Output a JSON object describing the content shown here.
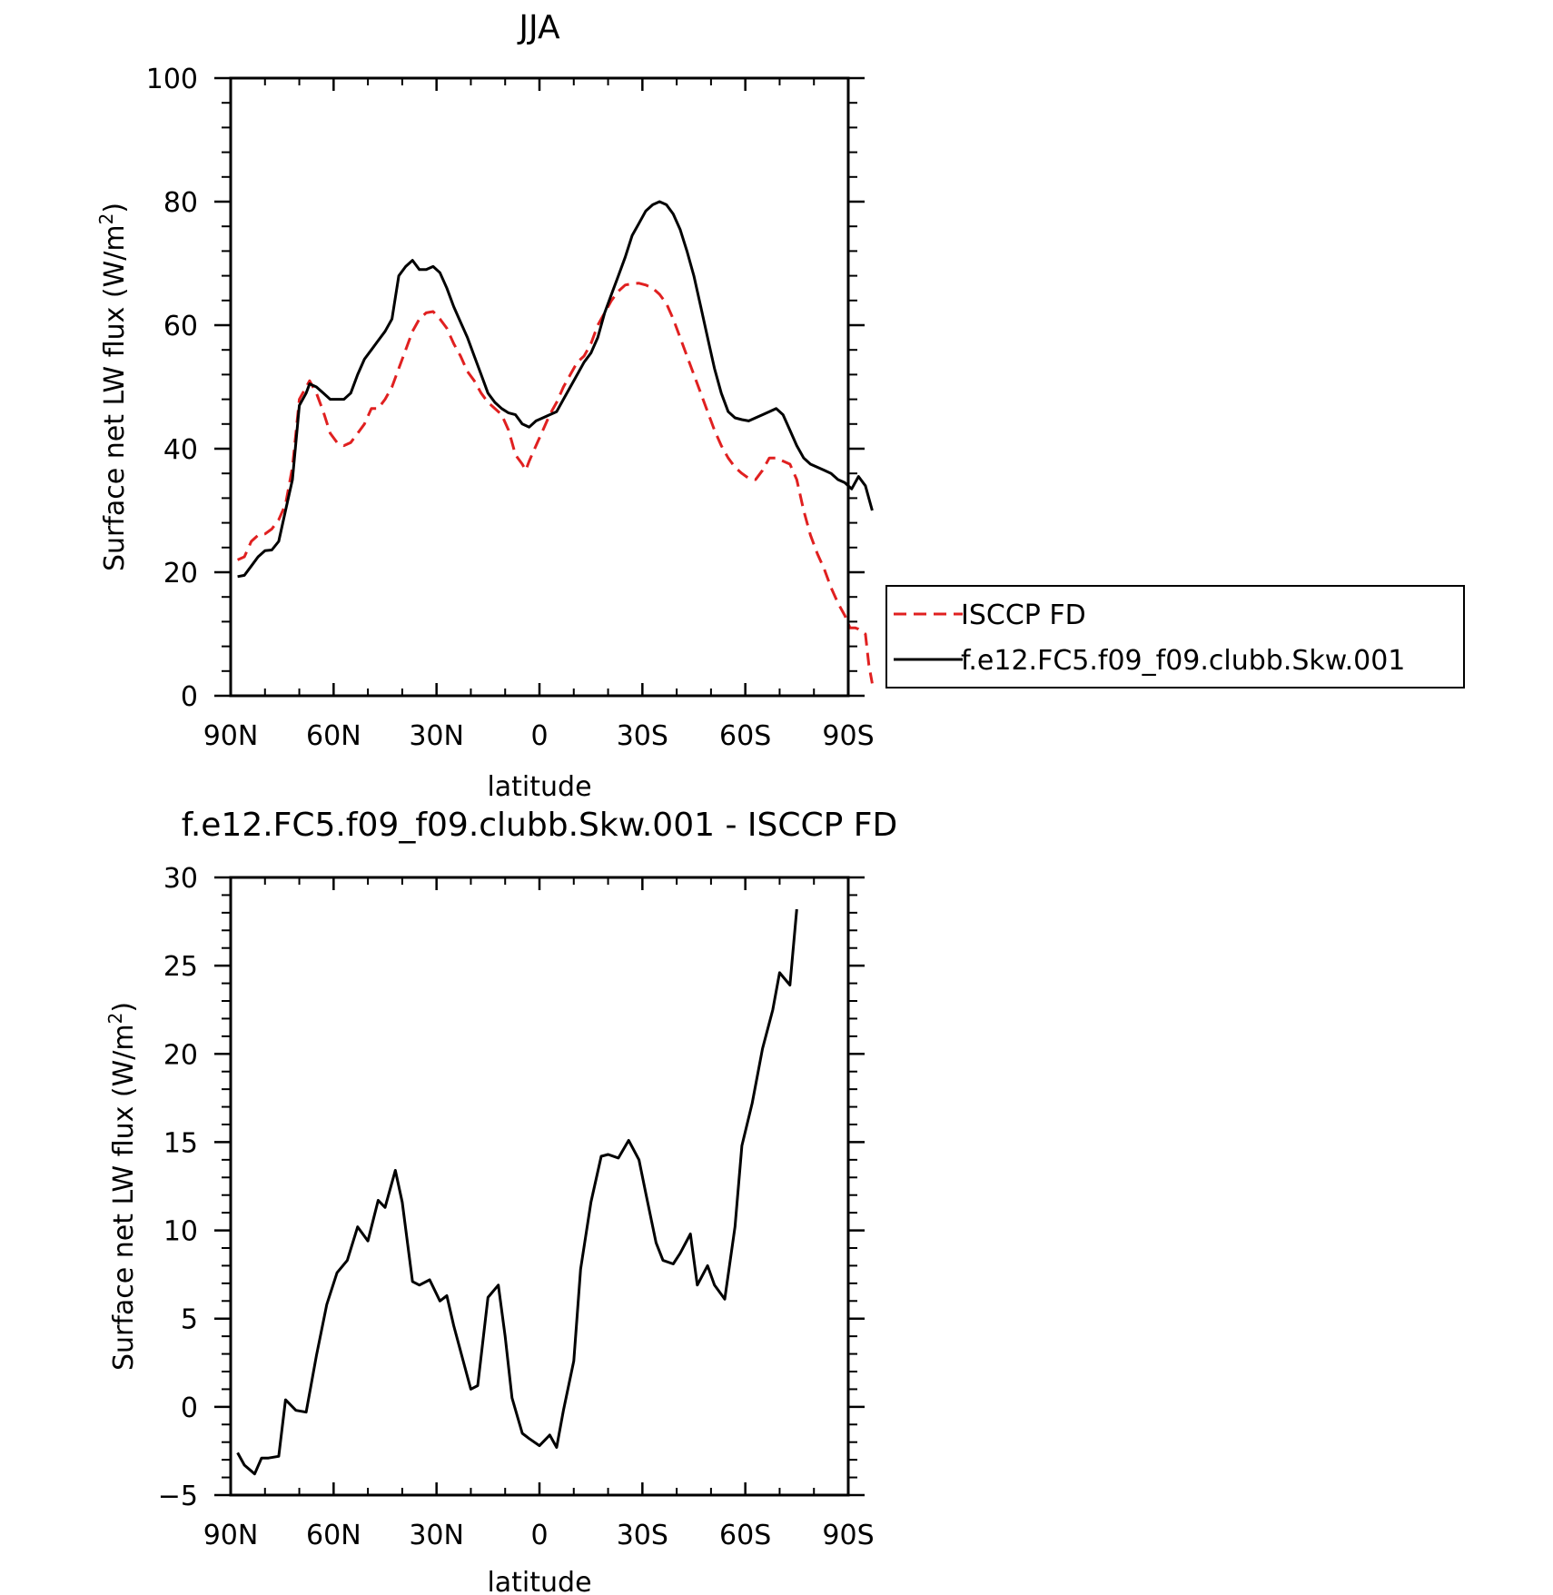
{
  "charts": [
    {
      "type": "line",
      "title": "JJA",
      "xlabel": "latitude",
      "ylabel": "Surface net LW flux (W/m",
      "ylabel_sup": "2",
      "ylabel_close": ")",
      "xlim": [
        90,
        -90
      ],
      "ylim": [
        0,
        100
      ],
      "x_ticks": [
        90,
        60,
        30,
        0,
        -30,
        -60,
        -90
      ],
      "x_tick_labels": [
        "90N",
        "60N",
        "30N",
        "0",
        "30S",
        "60S",
        "90S"
      ],
      "y_ticks": [
        0,
        20,
        40,
        60,
        80,
        100
      ],
      "y_tick_labels": [
        "0",
        "20",
        "40",
        "60",
        "80",
        "100"
      ],
      "legend": {
        "placement": "right",
        "entries": [
          "ISCCP FD",
          "f.e12.FC5.f09_f09.clubb.Skw.001"
        ]
      },
      "series": [
        {
          "name": "ISCCP FD",
          "color": "#e02020",
          "dashed": true,
          "points": [
            [
              88,
              22
            ],
            [
              86,
              22.5
            ],
            [
              84,
              25
            ],
            [
              82,
              26
            ],
            [
              80,
              26.2
            ],
            [
              78,
              27
            ],
            [
              76,
              28.5
            ],
            [
              74,
              31
            ],
            [
              72,
              37
            ],
            [
              70,
              48
            ],
            [
              67,
              51
            ],
            [
              65,
              49
            ],
            [
              63,
              46
            ],
            [
              61,
              42.5
            ],
            [
              59,
              41
            ],
            [
              57,
              40.5
            ],
            [
              55,
              41
            ],
            [
              53,
              42.5
            ],
            [
              51,
              44
            ],
            [
              49,
              46.5
            ],
            [
              47,
              46.5
            ],
            [
              45,
              48
            ],
            [
              43,
              50
            ],
            [
              41,
              53
            ],
            [
              39,
              56
            ],
            [
              37,
              59
            ],
            [
              35,
              61
            ],
            [
              33,
              62
            ],
            [
              31,
              62.2
            ],
            [
              29,
              61
            ],
            [
              27,
              59.5
            ],
            [
              25,
              57
            ],
            [
              23,
              55
            ],
            [
              21,
              52.5
            ],
            [
              19,
              51
            ],
            [
              17,
              49
            ],
            [
              15,
              47.5
            ],
            [
              13,
              46.5
            ],
            [
              11,
              45.5
            ],
            [
              9,
              43
            ],
            [
              7,
              39
            ],
            [
              5,
              37.5
            ],
            [
              4,
              36.5
            ],
            [
              3,
              38
            ],
            [
              1,
              40.5
            ],
            [
              -1,
              43
            ],
            [
              -3,
              45.5
            ],
            [
              -5,
              47.5
            ],
            [
              -7,
              50
            ],
            [
              -9,
              52
            ],
            [
              -11,
              54
            ],
            [
              -13,
              55
            ],
            [
              -15,
              57
            ],
            [
              -17,
              60
            ],
            [
              -19,
              62
            ],
            [
              -21,
              64
            ],
            [
              -23,
              65.5
            ],
            [
              -25,
              66.5
            ],
            [
              -27,
              66.7
            ],
            [
              -29,
              66.8
            ],
            [
              -31,
              66.5
            ],
            [
              -33,
              66
            ],
            [
              -35,
              65
            ],
            [
              -37,
              63.5
            ],
            [
              -39,
              61
            ],
            [
              -41,
              58
            ],
            [
              -43,
              55
            ],
            [
              -45,
              52
            ],
            [
              -47,
              49
            ],
            [
              -49,
              46
            ],
            [
              -51,
              43
            ],
            [
              -53,
              40.5
            ],
            [
              -55,
              38.5
            ],
            [
              -57,
              37
            ],
            [
              -59,
              36
            ],
            [
              -61,
              35.2
            ],
            [
              -63,
              35
            ],
            [
              -65,
              36.5
            ],
            [
              -67,
              38.5
            ],
            [
              -69,
              38.5
            ],
            [
              -71,
              38
            ],
            [
              -73,
              37.5
            ],
            [
              -75,
              35
            ],
            [
              -77,
              30
            ],
            [
              -79,
              26
            ],
            [
              -81,
              23
            ],
            [
              -83,
              20.5
            ],
            [
              -85,
              17.5
            ],
            [
              -87,
              15
            ],
            [
              -89,
              13
            ],
            [
              -90.5,
              11
            ],
            [
              -92,
              11
            ],
            [
              -93,
              10.8
            ],
            [
              -95,
              10
            ],
            [
              -96,
              5
            ],
            [
              -97,
              2
            ]
          ]
        },
        {
          "name": "f.e12.FC5.f09_f09.clubb.Skw.001",
          "color": "#000000",
          "dashed": false,
          "points": [
            [
              88,
              19.3
            ],
            [
              86,
              19.5
            ],
            [
              84,
              21
            ],
            [
              82,
              22.5
            ],
            [
              80,
              23.5
            ],
            [
              78,
              23.6
            ],
            [
              76,
              25
            ],
            [
              74,
              30
            ],
            [
              72,
              35
            ],
            [
              70,
              47
            ],
            [
              68,
              49
            ],
            [
              67,
              50.5
            ],
            [
              65,
              50
            ],
            [
              63,
              49
            ],
            [
              61,
              48
            ],
            [
              59,
              48
            ],
            [
              57,
              48
            ],
            [
              55,
              49
            ],
            [
              53,
              52
            ],
            [
              51,
              54.5
            ],
            [
              49,
              56
            ],
            [
              47,
              57.5
            ],
            [
              45,
              59
            ],
            [
              43,
              61
            ],
            [
              41,
              68
            ],
            [
              39,
              69.5
            ],
            [
              37,
              70.5
            ],
            [
              35,
              69
            ],
            [
              33,
              69
            ],
            [
              31,
              69.5
            ],
            [
              29,
              68.5
            ],
            [
              27,
              66
            ],
            [
              25,
              63
            ],
            [
              23,
              60.5
            ],
            [
              21,
              58
            ],
            [
              19,
              55
            ],
            [
              17,
              52
            ],
            [
              15,
              49
            ],
            [
              13,
              47.5
            ],
            [
              11,
              46.5
            ],
            [
              9,
              45.8
            ],
            [
              7,
              45.5
            ],
            [
              5,
              44
            ],
            [
              3,
              43.5
            ],
            [
              1,
              44.5
            ],
            [
              -1,
              45
            ],
            [
              -3,
              45.5
            ],
            [
              -5,
              46
            ],
            [
              -7,
              48
            ],
            [
              -9,
              50
            ],
            [
              -11,
              52
            ],
            [
              -13,
              54
            ],
            [
              -15,
              55.5
            ],
            [
              -17,
              58
            ],
            [
              -19,
              62
            ],
            [
              -21,
              65
            ],
            [
              -23,
              68
            ],
            [
              -25,
              71
            ],
            [
              -27,
              74.5
            ],
            [
              -29,
              76.5
            ],
            [
              -31,
              78.5
            ],
            [
              -33,
              79.5
            ],
            [
              -35,
              80
            ],
            [
              -37,
              79.5
            ],
            [
              -39,
              78
            ],
            [
              -41,
              75.5
            ],
            [
              -43,
              72
            ],
            [
              -45,
              68
            ],
            [
              -47,
              63
            ],
            [
              -49,
              58
            ],
            [
              -51,
              53
            ],
            [
              -53,
              49
            ],
            [
              -55,
              46
            ],
            [
              -57,
              45
            ],
            [
              -59,
              44.7
            ],
            [
              -61,
              44.5
            ],
            [
              -63,
              45
            ],
            [
              -65,
              45.5
            ],
            [
              -67,
              46
            ],
            [
              -69,
              46.5
            ],
            [
              -71,
              45.5
            ],
            [
              -73,
              43
            ],
            [
              -75,
              40.5
            ],
            [
              -77,
              38.5
            ],
            [
              -79,
              37.5
            ],
            [
              -81,
              37
            ],
            [
              -83,
              36.5
            ],
            [
              -85,
              36
            ],
            [
              -87,
              35
            ],
            [
              -89,
              34.5
            ],
            [
              -91,
              33.5
            ],
            [
              -93,
              35.5
            ],
            [
              -95,
              34
            ],
            [
              -97,
              30
            ]
          ]
        }
      ]
    },
    {
      "type": "line",
      "title": "f.e12.FC5.f09_f09.clubb.Skw.001 - ISCCP FD",
      "xlabel": "latitude",
      "ylabel": "Surface net LW flux (W/m",
      "ylabel_sup": "2",
      "ylabel_close": ")",
      "xlim": [
        90,
        -90
      ],
      "ylim": [
        -5,
        30
      ],
      "x_ticks": [
        90,
        60,
        30,
        0,
        -30,
        -60,
        -90
      ],
      "x_tick_labels": [
        "90N",
        "60N",
        "30N",
        "0",
        "30S",
        "60S",
        "90S"
      ],
      "y_ticks": [
        -5,
        0,
        5,
        10,
        15,
        20,
        25,
        30
      ],
      "y_tick_labels": [
        "−5",
        "0",
        "5",
        "10",
        "15",
        "20",
        "25",
        "30"
      ],
      "series": [
        {
          "color": "#000000",
          "dashed": false,
          "points": [
            [
              88,
              -2.6
            ],
            [
              86,
              -3.3
            ],
            [
              83,
              -3.8
            ],
            [
              81,
              -2.9
            ],
            [
              79,
              -2.9
            ],
            [
              76,
              -2.8
            ],
            [
              74,
              0.4
            ],
            [
              71,
              -0.2
            ],
            [
              68,
              -0.3
            ],
            [
              65,
              2.9
            ],
            [
              62,
              5.8
            ],
            [
              59,
              7.6
            ],
            [
              56,
              8.3
            ],
            [
              53,
              10.2
            ],
            [
              50,
              9.4
            ],
            [
              47,
              11.7
            ],
            [
              45,
              11.3
            ],
            [
              42,
              13.4
            ],
            [
              40,
              11.6
            ],
            [
              37,
              7.1
            ],
            [
              35,
              6.9
            ],
            [
              32,
              7.2
            ],
            [
              29,
              6.0
            ],
            [
              27,
              6.3
            ],
            [
              25,
              4.6
            ],
            [
              20,
              1.0
            ],
            [
              18,
              1.2
            ],
            [
              15,
              6.2
            ],
            [
              12,
              6.9
            ],
            [
              10,
              4.0
            ],
            [
              8,
              0.5
            ],
            [
              5,
              -1.5
            ],
            [
              3,
              -1.8
            ],
            [
              0,
              -2.2
            ],
            [
              -3,
              -1.6
            ],
            [
              -5,
              -2.3
            ],
            [
              -7,
              -0.2
            ],
            [
              -10,
              2.6
            ],
            [
              -12,
              7.8
            ],
            [
              -15,
              11.6
            ],
            [
              -18,
              14.2
            ],
            [
              -20,
              14.3
            ],
            [
              -23,
              14.1
            ],
            [
              -26,
              15.1
            ],
            [
              -29,
              14.0
            ],
            [
              -31,
              12.1
            ],
            [
              -34,
              9.3
            ],
            [
              -36,
              8.3
            ],
            [
              -39,
              8.1
            ],
            [
              -41,
              8.7
            ],
            [
              -44,
              9.8
            ],
            [
              -46,
              6.9
            ],
            [
              -49,
              8.0
            ],
            [
              -51,
              6.9
            ],
            [
              -54,
              6.1
            ],
            [
              -57,
              10.2
            ],
            [
              -59,
              14.8
            ],
            [
              -62,
              17.2
            ],
            [
              -65,
              20.3
            ],
            [
              -68,
              22.5
            ],
            [
              -70,
              24.6
            ],
            [
              -73,
              23.9
            ],
            [
              -75,
              28.2
            ]
          ]
        }
      ]
    }
  ]
}
